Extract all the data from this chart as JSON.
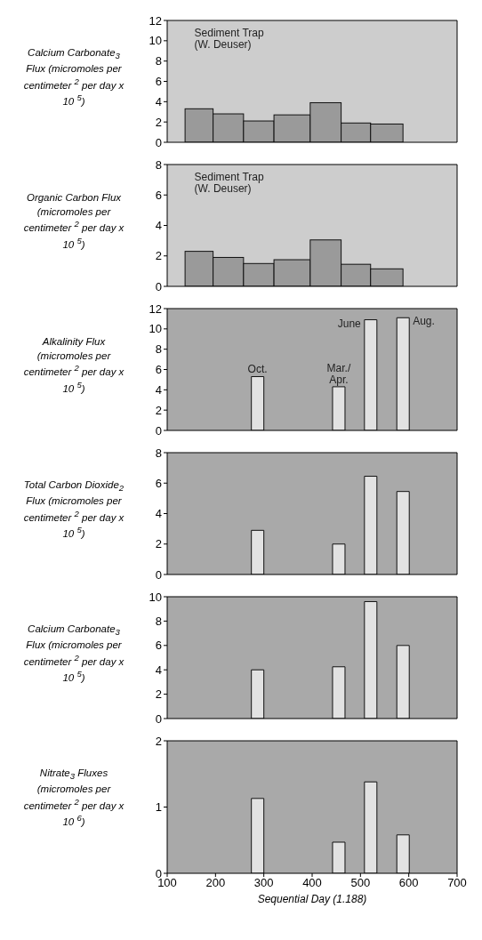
{
  "chart_data": [
    {
      "type": "histogram",
      "ylabel": "Calcium Carbonate$_{3}$ Flux (micromoles per centimeter $^{2}$ per day x 10 $^{5}$)",
      "bins": [
        137,
        195,
        258,
        321,
        396,
        460,
        521,
        588
      ],
      "values": [
        3.3,
        2.8,
        2.1,
        2.7,
        3.9,
        1.9,
        1.8
      ],
      "color": "#9a9a9a",
      "xlim": [
        100,
        700
      ],
      "xticks": [
        100,
        200,
        300,
        400,
        500,
        600,
        700
      ],
      "ylim": [
        0,
        12
      ],
      "yticks": [
        0,
        2,
        4,
        6,
        8,
        10,
        12
      ],
      "tick_labels": "y",
      "annotations": [
        "Sediment Trap\n(W. Deuser)"
      ]
    },
    {
      "type": "histogram",
      "ylabel": "Organic Carbon Flux (micromoles per centimeter $^{2}$ per day x 10 $^{5}$)",
      "bins": [
        137,
        195,
        258,
        321,
        396,
        460,
        521,
        588
      ],
      "values": [
        2.3,
        1.9,
        1.5,
        1.75,
        3.05,
        1.45,
        1.15
      ],
      "color": "#9a9a9a",
      "xlim": [
        100,
        700
      ],
      "xticks": [
        100,
        200,
        300,
        400,
        500,
        600,
        700
      ],
      "ylim": [
        0,
        8
      ],
      "yticks": [
        0,
        2,
        4,
        6,
        8
      ],
      "tick_labels": "y",
      "annotations": [
        "Sediment Trap\n(W. Deuser)"
      ]
    },
    {
      "type": "bar",
      "ylabel": "Alkalinity Flux (micromoles per centimeter $^{2}$ per day  x 10 $^{5}$)",
      "x": [
        287,
        455,
        521,
        588
      ],
      "values": [
        5.3,
        4.3,
        10.9,
        11.1
      ],
      "color": "#e2e2e2",
      "xlim": [
        100,
        700
      ],
      "xticks": [
        100,
        200,
        300,
        400,
        500,
        600,
        700
      ],
      "ylim": [
        0,
        12
      ],
      "yticks": [
        0,
        2,
        4,
        6,
        8,
        10,
        12
      ],
      "tick_labels": "y",
      "annotations": [
        {
          "text": "Oct.",
          "x": 287,
          "y": 5.3
        },
        {
          "text": "Mar./\nApr.",
          "x": 455,
          "y": 4.3
        },
        {
          "text": "June",
          "x": 521,
          "y": 10.9
        },
        {
          "text": "Aug.",
          "x": 588,
          "y": 11.1
        }
      ]
    },
    {
      "type": "bar",
      "ylabel": "Total Carbon Dioxide$_{2}$ Flux (micromoles per centimeter $^{2}$ per day x 10 $^{5}$)",
      "x": [
        287,
        455,
        521,
        588
      ],
      "values": [
        2.9,
        2.0,
        6.45,
        5.45
      ],
      "color": "#e2e2e2",
      "xlim": [
        100,
        700
      ],
      "xticks": [
        100,
        200,
        300,
        400,
        500,
        600,
        700
      ],
      "ylim": [
        0,
        8
      ],
      "yticks": [
        0,
        2,
        4,
        6,
        8
      ],
      "tick_labels": "y"
    },
    {
      "type": "bar",
      "ylabel": "Calcium Carbonate$_{3}$ Flux (micromoles per centimeter $^{2}$ per day x 10 $^{5}$)",
      "x": [
        287,
        455,
        521,
        588
      ],
      "values": [
        4.0,
        4.25,
        9.6,
        6.0
      ],
      "color": "#e2e2e2",
      "xlim": [
        100,
        700
      ],
      "xticks": [
        100,
        200,
        300,
        400,
        500,
        600,
        700
      ],
      "ylim": [
        0,
        10
      ],
      "yticks": [
        0,
        2,
        4,
        6,
        8,
        10
      ],
      "tick_labels": "y"
    },
    {
      "type": "bar",
      "ylabel": "Nitrate$_{3}$ Fluxes (micromoles per centimeter $^{2}$ per day x 10 $^{6}$)",
      "x": [
        287,
        455,
        521,
        588
      ],
      "values": [
        1.13,
        0.47,
        1.38,
        0.58
      ],
      "color": "#e2e2e2",
      "xlim": [
        100,
        700
      ],
      "xticks": [
        100,
        200,
        300,
        400,
        500,
        600,
        700
      ],
      "ylim": [
        0,
        2
      ],
      "yticks": [
        0,
        1,
        2
      ],
      "xlabel": "Sequential Day (1.188)"
    }
  ]
}
